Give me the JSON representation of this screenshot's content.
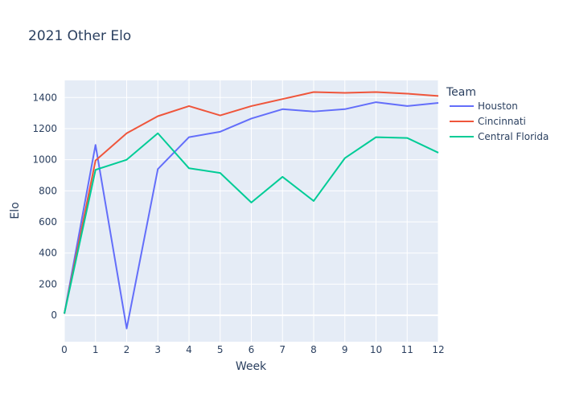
{
  "chart_data": {
    "type": "line",
    "title": "2021 Other Elo",
    "xlabel": "Week",
    "ylabel": "Elo",
    "x": [
      0,
      1,
      2,
      3,
      4,
      5,
      6,
      7,
      8,
      9,
      10,
      11,
      12
    ],
    "xlim": [
      0,
      12
    ],
    "ylim": [
      -170,
      1510
    ],
    "x_ticks": [
      "0",
      "1",
      "2",
      "3",
      "4",
      "5",
      "6",
      "7",
      "8",
      "9",
      "10",
      "11",
      "12"
    ],
    "y_ticks": [
      "0",
      "200",
      "400",
      "600",
      "800",
      "1000",
      "1200",
      "1400"
    ],
    "grid": true,
    "legend_position": "right",
    "legend_title": "Team",
    "series": [
      {
        "name": "Houston",
        "color": "#636efa",
        "values": [
          10,
          1095,
          -85,
          940,
          1145,
          1180,
          1265,
          1325,
          1310,
          1325,
          1370,
          1345,
          1365
        ]
      },
      {
        "name": "Cincinnati",
        "color": "#ef553b",
        "values": [
          10,
          995,
          1170,
          1280,
          1345,
          1285,
          1345,
          1390,
          1435,
          1430,
          1435,
          1425,
          1410
        ]
      },
      {
        "name": "Central Florida",
        "color": "#00cc96",
        "values": [
          10,
          935,
          1000,
          1170,
          945,
          915,
          725,
          890,
          735,
          1010,
          1145,
          1140,
          1045
        ]
      }
    ]
  }
}
